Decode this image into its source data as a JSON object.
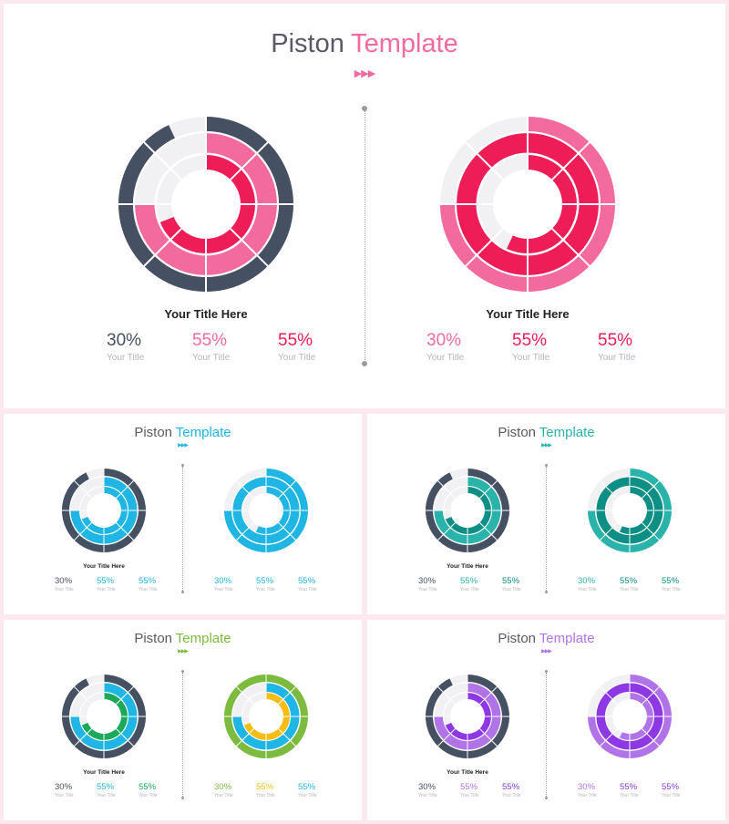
{
  "slides": [
    {
      "id": "big",
      "title_part1": "Piston",
      "title_part2": "Template",
      "accent": "#f36a9e",
      "arrows": "▶▶▶",
      "panels": [
        {
          "chart_title": "Your Title Here",
          "stats": [
            {
              "value": "30%",
              "caption": "Your Title",
              "color": "#465063",
              "icon": "person-icon"
            },
            {
              "value": "55%",
              "caption": "Your Title",
              "color": "#f36a9e",
              "icon": "person-icon"
            },
            {
              "value": "55%",
              "caption": "Your Title",
              "color": "#ee1c57",
              "icon": "person-icon"
            }
          ]
        },
        {
          "chart_title": "Your Title Here",
          "stats": [
            {
              "value": "30%",
              "caption": "Your Title",
              "color": "#f36a9e",
              "icon": "person-icon"
            },
            {
              "value": "55%",
              "caption": "Your Title",
              "color": "#ee1c57",
              "icon": "person-icon"
            },
            {
              "value": "55%",
              "caption": "Your Title",
              "color": "#ee1c57",
              "icon": "person-icon"
            }
          ]
        }
      ]
    },
    {
      "id": "s1",
      "title_part1": "Piston",
      "title_part2": "Template",
      "accent": "#1fb6e6",
      "arrows": "▶▶▶",
      "panels": [
        {
          "chart_title": "Your Title Here",
          "stats": [
            {
              "value": "30%",
              "caption": "Your Title",
              "color": "#465063",
              "icon": "person-icon"
            },
            {
              "value": "55%",
              "caption": "Your Title",
              "color": "#1fb6e6",
              "icon": "person-icon"
            },
            {
              "value": "55%",
              "caption": "Your Title",
              "color": "#1fb6e6",
              "icon": "person-icon"
            }
          ]
        },
        {
          "chart_title": "",
          "stats": [
            {
              "value": "30%",
              "caption": "Your Title",
              "color": "#1fb6e6",
              "icon": "person-icon"
            },
            {
              "value": "55%",
              "caption": "Your Title",
              "color": "#1fb6e6",
              "icon": "person-icon"
            },
            {
              "value": "55%",
              "caption": "Your Title",
              "color": "#1fb6e6",
              "icon": "person-icon"
            }
          ]
        }
      ]
    },
    {
      "id": "s2",
      "title_part1": "Piston",
      "title_part2": "Template",
      "accent": "#2ab3ab",
      "arrows": "▶▶▶",
      "panels": [
        {
          "chart_title": "Your Title Here",
          "stats": [
            {
              "value": "30%",
              "caption": "Your Title",
              "color": "#465063",
              "icon": "person-icon"
            },
            {
              "value": "55%",
              "caption": "Your Title",
              "color": "#2ab3ab",
              "icon": "person-icon"
            },
            {
              "value": "55%",
              "caption": "Your Title",
              "color": "#0e8f85",
              "icon": "person-icon"
            }
          ]
        },
        {
          "chart_title": "",
          "stats": [
            {
              "value": "30%",
              "caption": "Your Title",
              "color": "#2ab3ab",
              "icon": "person-icon"
            },
            {
              "value": "55%",
              "caption": "Your Title",
              "color": "#0e8f85",
              "icon": "person-icon"
            },
            {
              "value": "55%",
              "caption": "Your Title",
              "color": "#0e8f85",
              "icon": "person-icon"
            }
          ]
        }
      ]
    },
    {
      "id": "s3",
      "title_part1": "Piston",
      "title_part2": "Template",
      "accent": "#7dbb3f",
      "arrows": "▶▶▶",
      "panels": [
        {
          "chart_title": "Your Title Here",
          "stats": [
            {
              "value": "30%",
              "caption": "Your Title",
              "color": "#465063",
              "icon": "person-icon"
            },
            {
              "value": "55%",
              "caption": "Your Title",
              "color": "#1fb6e6",
              "icon": "person-icon"
            },
            {
              "value": "55%",
              "caption": "Your Title",
              "color": "#1aa85a",
              "icon": "person-icon"
            }
          ]
        },
        {
          "chart_title": "",
          "stats": [
            {
              "value": "30%",
              "caption": "Your Title",
              "color": "#7dbb3f",
              "icon": "person-icon"
            },
            {
              "value": "55%",
              "caption": "Your Title",
              "color": "#f8bd12",
              "icon": "person-icon"
            },
            {
              "value": "55%",
              "caption": "Your Title",
              "color": "#1fb6e6",
              "icon": "person-icon"
            }
          ]
        }
      ]
    },
    {
      "id": "s4",
      "title_part1": "Piston",
      "title_part2": "Template",
      "accent": "#b173e8",
      "arrows": "▶▶▶",
      "panels": [
        {
          "chart_title": "Your Title Here",
          "stats": [
            {
              "value": "30%",
              "caption": "Your Title",
              "color": "#465063",
              "icon": "person-icon"
            },
            {
              "value": "55%",
              "caption": "Your Title",
              "color": "#b173e8",
              "icon": "person-icon"
            },
            {
              "value": "55%",
              "caption": "Your Title",
              "color": "#8e37e4",
              "icon": "person-icon"
            }
          ]
        },
        {
          "chart_title": "",
          "stats": [
            {
              "value": "30%",
              "caption": "Your Title",
              "color": "#b173e8",
              "icon": "person-icon"
            },
            {
              "value": "55%",
              "caption": "Your Title",
              "color": "#8e37e4",
              "icon": "person-icon"
            },
            {
              "value": "55%",
              "caption": "Your Title",
              "color": "#8e37e4",
              "icon": "person-icon"
            }
          ]
        }
      ]
    }
  ],
  "chart_data": [
    {
      "type": "pie",
      "slide": "big",
      "panel": "left",
      "style": "concentric donut",
      "series": [
        {
          "color": "#465063",
          "values": [
            0.93
          ]
        },
        {
          "color": "#f36a9e",
          "values": [
            0.75
          ]
        },
        {
          "color": "#ee1c57",
          "values": [
            0.69
          ]
        }
      ]
    },
    {
      "type": "pie",
      "slide": "big",
      "panel": "right",
      "style": "concentric donut",
      "series": [
        {
          "color": "#f36a9e",
          "values": [
            0.75
          ]
        },
        {
          "color": "#ee1c57",
          "values": [
            1.0
          ]
        },
        {
          "color": "#ee1c57",
          "values": [
            0.57
          ]
        }
      ]
    },
    {
      "type": "pie",
      "slide": "s1",
      "panel": "left",
      "style": "concentric donut",
      "series": [
        {
          "color": "#465063",
          "values": [
            0.93
          ]
        },
        {
          "color": "#1fb6e6",
          "values": [
            0.75
          ]
        },
        {
          "color": "#1fb6e6",
          "values": [
            0.69
          ]
        }
      ]
    },
    {
      "type": "pie",
      "slide": "s1",
      "panel": "right",
      "style": "concentric donut",
      "series": [
        {
          "color": "#1fb6e6",
          "values": [
            0.75
          ]
        },
        {
          "color": "#1fb6e6",
          "values": [
            1.0
          ]
        },
        {
          "color": "#1fb6e6",
          "values": [
            0.57
          ]
        }
      ]
    },
    {
      "type": "pie",
      "slide": "s2",
      "panel": "left",
      "style": "concentric donut",
      "series": [
        {
          "color": "#465063",
          "values": [
            0.93
          ]
        },
        {
          "color": "#2ab3ab",
          "values": [
            0.75
          ]
        },
        {
          "color": "#0e8f85",
          "values": [
            0.69
          ]
        }
      ]
    },
    {
      "type": "pie",
      "slide": "s2",
      "panel": "right",
      "style": "concentric donut",
      "series": [
        {
          "color": "#2ab3ab",
          "values": [
            0.75
          ]
        },
        {
          "color": "#0e8f85",
          "values": [
            1.0
          ]
        },
        {
          "color": "#0e8f85",
          "values": [
            0.57
          ]
        }
      ]
    },
    {
      "type": "pie",
      "slide": "s3",
      "panel": "left",
      "style": "concentric donut",
      "series": [
        {
          "color": "#465063",
          "values": [
            0.93
          ]
        },
        {
          "color": "#1fb6e6",
          "values": [
            0.75
          ]
        },
        {
          "color": "#1aa85a",
          "values": [
            0.69
          ]
        }
      ]
    },
    {
      "type": "pie",
      "slide": "s3",
      "panel": "right",
      "style": "concentric donut",
      "series": [
        {
          "color": "#7dbb3f",
          "values": [
            1.0
          ]
        },
        {
          "color": "#1fb6e6",
          "values": [
            0.75
          ]
        },
        {
          "color": "#f8bd12",
          "values": [
            0.69
          ]
        }
      ]
    },
    {
      "type": "pie",
      "slide": "s4",
      "panel": "left",
      "style": "concentric donut",
      "series": [
        {
          "color": "#465063",
          "values": [
            0.93
          ]
        },
        {
          "color": "#b173e8",
          "values": [
            0.75
          ]
        },
        {
          "color": "#8e37e4",
          "values": [
            0.69
          ]
        }
      ]
    },
    {
      "type": "pie",
      "slide": "s4",
      "panel": "right",
      "style": "concentric donut",
      "series": [
        {
          "color": "#b173e8",
          "values": [
            0.75
          ]
        },
        {
          "color": "#8e37e4",
          "values": [
            1.0
          ]
        },
        {
          "color": "#b173e8",
          "values": [
            0.57
          ]
        }
      ]
    }
  ]
}
